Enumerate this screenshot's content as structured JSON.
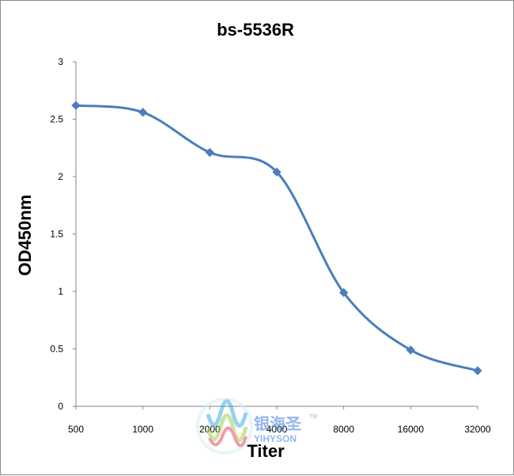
{
  "chart_data": {
    "type": "line",
    "title": "bs-5536R",
    "xlabel": "Titer",
    "ylabel": "OD450nm",
    "categories": [
      "500",
      "1000",
      "2000",
      "4000",
      "8000",
      "16000",
      "32000"
    ],
    "yticks": [
      "0",
      "0.5",
      "1",
      "1.5",
      "2",
      "2.5",
      "3"
    ],
    "ylim": [
      0,
      3
    ],
    "grid": false,
    "legend": "none",
    "series": [
      {
        "values": [
          2.62,
          2.56,
          2.21,
          2.04,
          0.99,
          0.49,
          0.31
        ]
      }
    ],
    "colors": {
      "line": "#4a7ebb",
      "axis": "#868686"
    }
  },
  "watermark": {
    "brand_cn": "银海圣",
    "brand_en": "YIHYSON",
    "tm": "TM"
  }
}
